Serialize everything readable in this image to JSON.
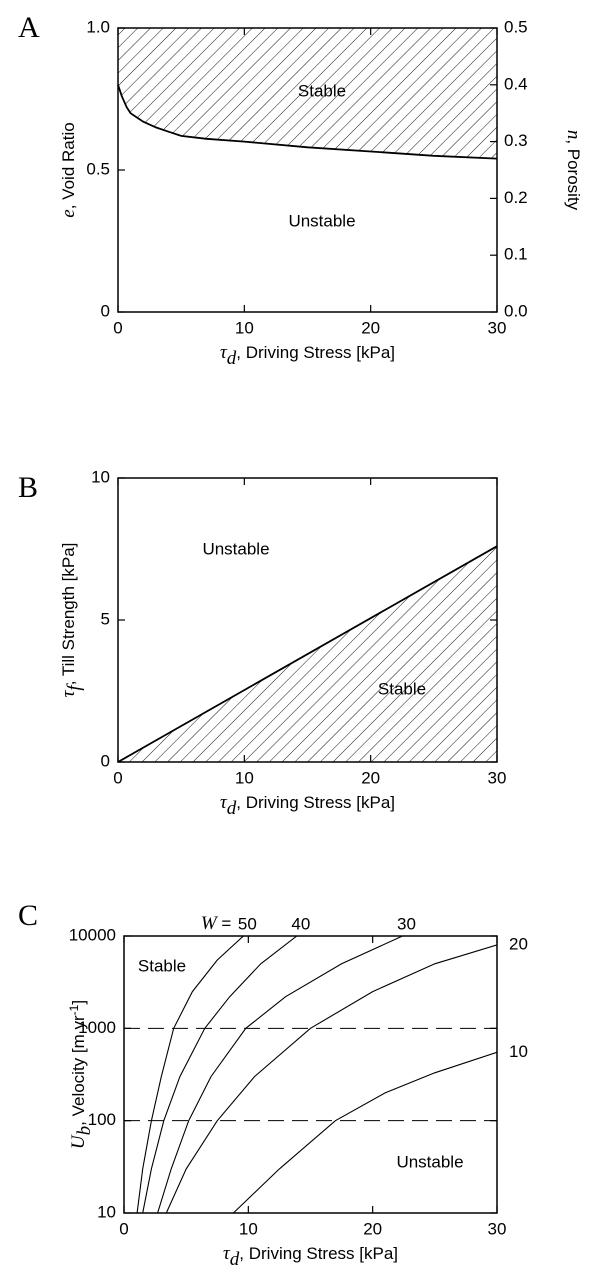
{
  "chart_data": [
    {
      "type": "area",
      "panel_label": "A",
      "fill_side": "above",
      "color": "#000000",
      "x": [
        0,
        0.3,
        0.7,
        1,
        1.5,
        2,
        3,
        4,
        5,
        7,
        10,
        15,
        20,
        25,
        30
      ],
      "values": [
        0.8,
        0.76,
        0.72,
        0.7,
        0.685,
        0.67,
        0.65,
        0.635,
        0.62,
        0.61,
        0.6,
        0.58,
        0.565,
        0.55,
        0.54
      ],
      "annotations": [
        "Stable",
        "Unstable"
      ],
      "xlabel": {
        "symbol": "τ",
        "sub": "d",
        "text": ", Driving Stress [kPa]"
      },
      "ylabel": {
        "symbol": "e",
        "text": ", Void Ratio"
      },
      "y2label": {
        "symbol": "n",
        "text": ", Porosity"
      },
      "xlim": [
        0,
        30
      ],
      "xticks": [
        0,
        10,
        20,
        30
      ],
      "ylim": [
        0,
        1
      ],
      "yticks": [
        0,
        0.5,
        {
          "value": 1,
          "label": "1.0"
        }
      ],
      "y2lim": [
        0,
        0.5
      ],
      "y2ticks": [
        {
          "value": 0,
          "label": "0.0"
        },
        0.1,
        0.2,
        0.3,
        0.4,
        0.5
      ]
    },
    {
      "type": "area",
      "panel_label": "B",
      "fill_side": "below",
      "color": "#000000",
      "x": [
        0,
        30
      ],
      "values": [
        0,
        7.6
      ],
      "annotations": [
        "Unstable",
        "Stable"
      ],
      "xlabel": {
        "symbol": "τ",
        "sub": "d",
        "text": ", Driving Stress [kPa]"
      },
      "ylabel": {
        "symbol": "τ",
        "sub": "f",
        "text": ", Till Strength [kPa]"
      },
      "xlim": [
        0,
        30
      ],
      "xticks": [
        0,
        10,
        20,
        30
      ],
      "ylim": [
        0,
        10
      ],
      "yticks": [
        0,
        5,
        10
      ]
    },
    {
      "type": "line",
      "panel_label": "C",
      "log_y": true,
      "hlines": [
        100,
        1000
      ],
      "annotations": [
        "Stable",
        "Unstable"
      ],
      "w_label": {
        "symbol": "W",
        "text": " ="
      },
      "xlabel": {
        "symbol": "τ",
        "sub": "d",
        "text": ", Driving Stress [kPa]"
      },
      "ylabel": {
        "symbol": "U",
        "sub": "b",
        "text": ", Velocity [m yr",
        "sup": "-1",
        "end": "]"
      },
      "xlim": [
        0,
        30
      ],
      "xticks": [
        0,
        10,
        20,
        30
      ],
      "ylim": [
        10,
        10000
      ],
      "yticks": [
        10,
        100,
        1000,
        10000
      ],
      "series": [
        {
          "name": "50",
          "color": "#000000",
          "x": [
            1.05,
            1.5,
            2.2,
            3,
            4,
            5.5,
            7.5,
            9.6
          ],
          "values": [
            10,
            30,
            100,
            300,
            1000,
            2500,
            5500,
            10000
          ]
        },
        {
          "name": "40",
          "color": "#000000",
          "x": [
            1.5,
            2.2,
            3.2,
            4.5,
            6.5,
            8.5,
            11,
            13.9
          ],
          "values": [
            10,
            30,
            100,
            300,
            1000,
            2200,
            5000,
            10000
          ]
        },
        {
          "name": "30",
          "color": "#000000",
          "x": [
            2.7,
            3.8,
            5.2,
            7,
            9.8,
            13,
            17.5,
            22.4
          ],
          "values": [
            10,
            30,
            100,
            300,
            1000,
            2200,
            5000,
            10000
          ]
        },
        {
          "name": "20",
          "color": "#000000",
          "x": [
            3.4,
            5,
            7.5,
            10.5,
            15,
            20,
            25,
            30
          ],
          "values": [
            10,
            30,
            100,
            300,
            1000,
            2500,
            5000,
            8000
          ]
        },
        {
          "name": "10",
          "color": "#000000",
          "x": [
            8.8,
            12.5,
            17,
            21,
            25,
            30
          ],
          "values": [
            10,
            30,
            100,
            200,
            330,
            550
          ]
        }
      ]
    }
  ]
}
